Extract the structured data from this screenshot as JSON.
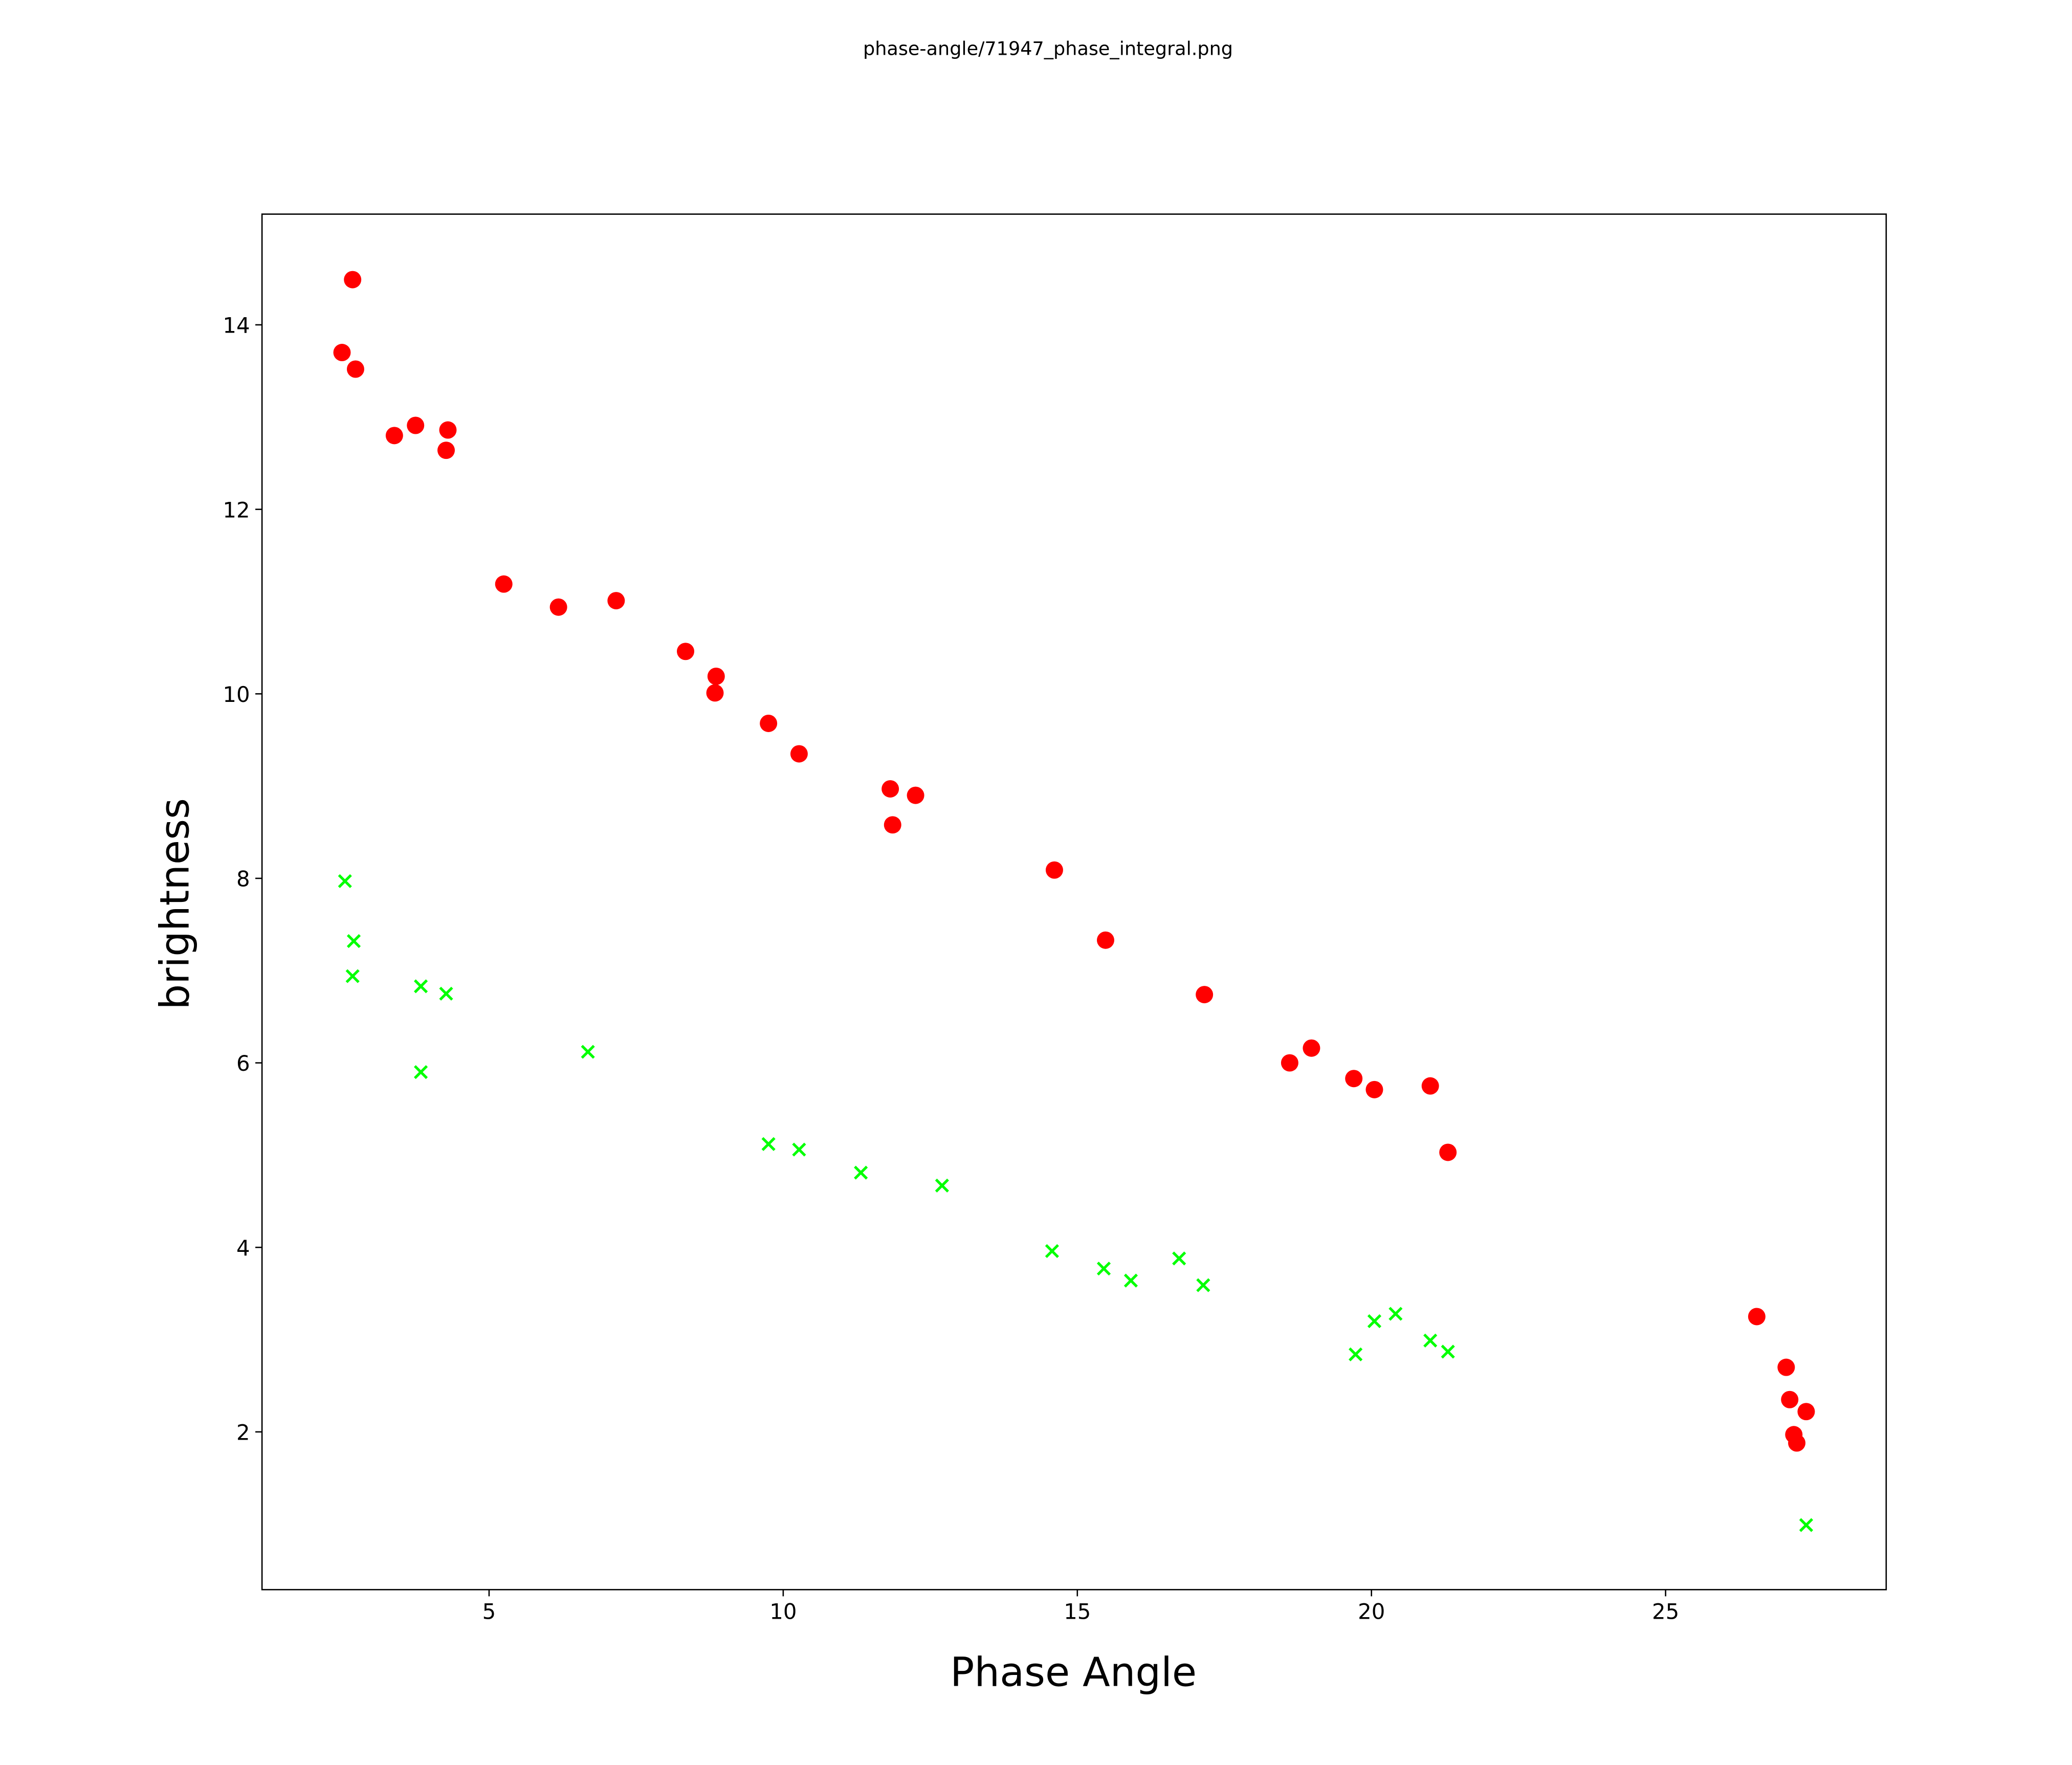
{
  "chart_data": {
    "type": "scatter",
    "title": "phase-angle/71947_phase_integral.png",
    "xlabel": "Phase Angle",
    "ylabel": "brightness",
    "xlim": [
      1.14,
      28.75
    ],
    "ylim": [
      0.29,
      15.2
    ],
    "xticks": [
      5,
      10,
      15,
      20,
      25
    ],
    "yticks": [
      2,
      4,
      6,
      8,
      10,
      12,
      14
    ],
    "grid": false,
    "legend": "none",
    "series": [
      {
        "name": "red-circles",
        "color": "#ff0000",
        "marker": "circle",
        "x": [
          2.68,
          2.5,
          2.73,
          3.39,
          3.75,
          4.3,
          4.27,
          5.25,
          6.18,
          7.16,
          8.34,
          8.86,
          8.84,
          9.75,
          10.27,
          11.82,
          12.25,
          11.86,
          14.61,
          15.48,
          17.16,
          18.61,
          18.98,
          19.7,
          20.05,
          21.0,
          21.3,
          26.55,
          27.05,
          27.11,
          27.39,
          27.18,
          27.23
        ],
        "y": [
          14.49,
          13.7,
          13.52,
          12.8,
          12.91,
          12.86,
          12.64,
          11.19,
          10.94,
          11.01,
          10.46,
          10.19,
          10.01,
          9.68,
          9.35,
          8.97,
          8.9,
          8.58,
          8.09,
          7.33,
          6.74,
          6.0,
          6.16,
          5.83,
          5.71,
          5.75,
          5.03,
          3.25,
          2.7,
          2.35,
          2.22,
          1.97,
          1.88
        ]
      },
      {
        "name": "green-crosses",
        "color": "#00ff00",
        "marker": "x",
        "x": [
          2.55,
          2.7,
          2.68,
          3.84,
          4.27,
          3.84,
          6.68,
          9.75,
          10.27,
          11.32,
          12.7,
          14.57,
          15.45,
          15.91,
          16.73,
          17.14,
          19.73,
          20.05,
          20.41,
          21.0,
          21.3,
          27.39
        ],
        "y": [
          7.97,
          7.32,
          6.94,
          6.83,
          6.75,
          5.9,
          6.12,
          5.12,
          5.06,
          4.81,
          4.67,
          3.96,
          3.77,
          3.64,
          3.88,
          3.59,
          2.84,
          3.2,
          3.28,
          2.99,
          2.87,
          0.99
        ]
      }
    ]
  }
}
